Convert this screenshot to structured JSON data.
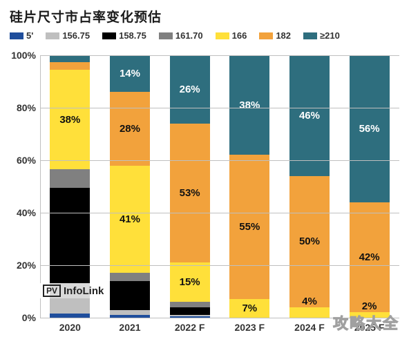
{
  "title": "硅片尺寸市占率变化预估",
  "title_fontsize": 19,
  "background_color": "#ffffff",
  "grid_color": "#bfbfbf",
  "chart": {
    "type": "stacked-bar",
    "ylabel_suffix": "%",
    "ylim": [
      0,
      100
    ],
    "ytick_step": 20,
    "yticks": [
      0,
      20,
      40,
      60,
      80,
      100
    ],
    "categories": [
      "2020",
      "2021",
      "2022 F",
      "2023 F",
      "2024 F",
      "2025 F"
    ],
    "series": [
      {
        "key": "s5",
        "label": "5'",
        "color": "#1f4e9c"
      },
      {
        "key": "s15675",
        "label": "156.75",
        "color": "#bfbfbf"
      },
      {
        "key": "s15875",
        "label": "158.75",
        "color": "#000000"
      },
      {
        "key": "s16170",
        "label": "161.70",
        "color": "#808080"
      },
      {
        "key": "s166",
        "label": "166",
        "color": "#ffe03a"
      },
      {
        "key": "s182",
        "label": "182",
        "color": "#f2a23c"
      },
      {
        "key": "s210",
        "label": "≥210",
        "color": "#2e6e7e"
      }
    ],
    "bars": [
      {
        "category": "2020",
        "segments": [
          {
            "series": "s5",
            "value": 1.5,
            "show_label": false
          },
          {
            "series": "s15675",
            "value": 6,
            "show_label": false
          },
          {
            "series": "s15875",
            "value": 42,
            "show_label": false
          },
          {
            "series": "s16170",
            "value": 7,
            "show_label": false
          },
          {
            "series": "s166",
            "value": 38,
            "show_label": true,
            "label": "38%"
          },
          {
            "series": "s182",
            "value": 3,
            "show_label": false
          },
          {
            "series": "s210",
            "value": 2.5,
            "show_label": false
          }
        ]
      },
      {
        "category": "2021",
        "segments": [
          {
            "series": "s5",
            "value": 1,
            "show_label": false
          },
          {
            "series": "s15675",
            "value": 2,
            "show_label": false
          },
          {
            "series": "s15875",
            "value": 11,
            "show_label": false
          },
          {
            "series": "s16170",
            "value": 3,
            "show_label": false
          },
          {
            "series": "s166",
            "value": 41,
            "show_label": true,
            "label": "41%"
          },
          {
            "series": "s182",
            "value": 28,
            "show_label": true,
            "label": "28%"
          },
          {
            "series": "s210",
            "value": 14,
            "show_label": true,
            "label": "14%"
          }
        ]
      },
      {
        "category": "2022 F",
        "segments": [
          {
            "series": "s5",
            "value": 0.5,
            "show_label": false
          },
          {
            "series": "s15675",
            "value": 0.5,
            "show_label": false
          },
          {
            "series": "s15875",
            "value": 3,
            "show_label": false
          },
          {
            "series": "s16170",
            "value": 2,
            "show_label": false
          },
          {
            "series": "s166",
            "value": 15,
            "show_label": true,
            "label": "15%"
          },
          {
            "series": "s182",
            "value": 53,
            "show_label": true,
            "label": "53%"
          },
          {
            "series": "s210",
            "value": 26,
            "show_label": true,
            "label": "26%"
          }
        ]
      },
      {
        "category": "2023 F",
        "segments": [
          {
            "series": "s166",
            "value": 7,
            "show_label": true,
            "label": "7%"
          },
          {
            "series": "s182",
            "value": 55,
            "show_label": true,
            "label": "55%"
          },
          {
            "series": "s210",
            "value": 38,
            "show_label": true,
            "label": "38%"
          }
        ]
      },
      {
        "category": "2024 F",
        "segments": [
          {
            "series": "s166",
            "value": 4,
            "show_label": true,
            "label": "4%"
          },
          {
            "series": "s182",
            "value": 50,
            "show_label": true,
            "label": "50%"
          },
          {
            "series": "s210",
            "value": 46,
            "show_label": true,
            "label": "46%"
          }
        ]
      },
      {
        "category": "2025 F",
        "segments": [
          {
            "series": "s166",
            "value": 2,
            "show_label": true,
            "label": "2%"
          },
          {
            "series": "s182",
            "value": 42,
            "show_label": true,
            "label": "42%"
          },
          {
            "series": "s210",
            "value": 56,
            "show_label": true,
            "label": "56%"
          }
        ]
      }
    ]
  },
  "source": {
    "logo": "PV",
    "name": "InfoLink"
  },
  "watermark": "攻略大全"
}
